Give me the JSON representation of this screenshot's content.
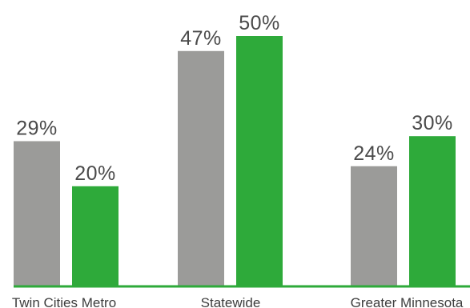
{
  "chart_data": {
    "type": "bar",
    "title": "",
    "xlabel": "",
    "ylabel": "",
    "categories": [
      "Twin Cities Metro",
      "Statewide",
      "Greater Minnesota"
    ],
    "series": [
      {
        "values": [
          29,
          47,
          24
        ],
        "color": "#9b9b99",
        "labels": [
          "29%",
          "47%",
          "24%"
        ]
      },
      {
        "values": [
          20,
          50,
          30
        ],
        "color": "#2eaa3a",
        "labels": [
          "20%",
          "50%",
          "30%"
        ]
      }
    ],
    "ylim": [
      0,
      50
    ],
    "unit": "%",
    "grid": false,
    "legend": "none",
    "baseline_color": "#2eaa3a"
  }
}
